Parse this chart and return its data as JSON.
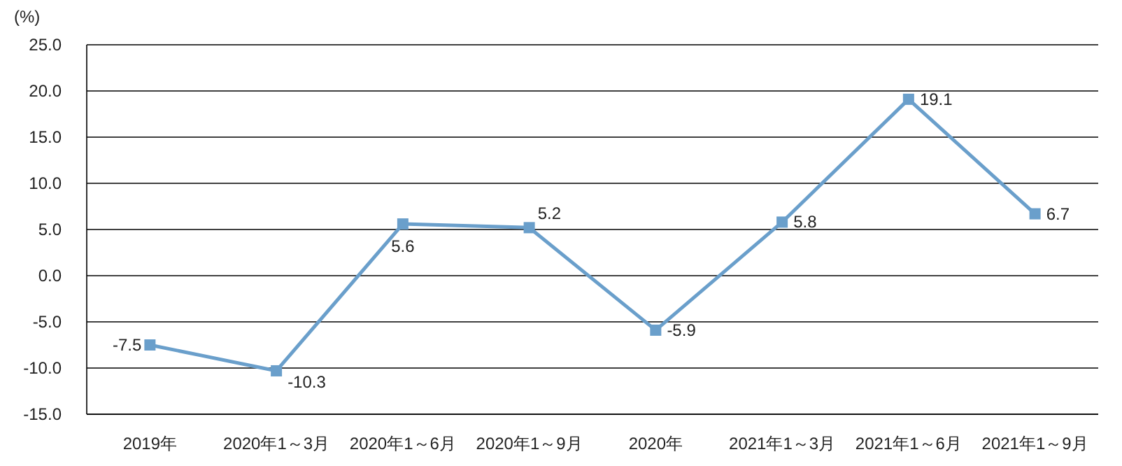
{
  "chart_data": {
    "type": "line",
    "ylabel": "(%)",
    "categories": [
      "2019年",
      "2020年1～3月",
      "2020年1～6月",
      "2020年1～9月",
      "2020年",
      "2021年1～3月",
      "2021年1～6月",
      "2021年1～9月"
    ],
    "series": [
      {
        "color": "#6a9fcb",
        "values": [
          -7.5,
          -10.3,
          5.6,
          5.2,
          -5.9,
          5.8,
          19.1,
          6.7
        ]
      }
    ],
    "ylim": [
      -15,
      25
    ],
    "yticks": [
      {
        "value": -15,
        "label": "-15.0"
      },
      {
        "value": -10,
        "label": "-10.0"
      },
      {
        "value": -5,
        "label": "-5.0"
      },
      {
        "value": 0,
        "label": "0.0"
      },
      {
        "value": 5,
        "label": "5.0"
      },
      {
        "value": 10,
        "label": "10.0"
      },
      {
        "value": 15,
        "label": "15.0"
      },
      {
        "value": 20,
        "label": "20.0"
      },
      {
        "value": 25,
        "label": "25.0"
      }
    ],
    "grid": "y",
    "marker": "square",
    "line_style": "solid",
    "data_labels": true
  }
}
